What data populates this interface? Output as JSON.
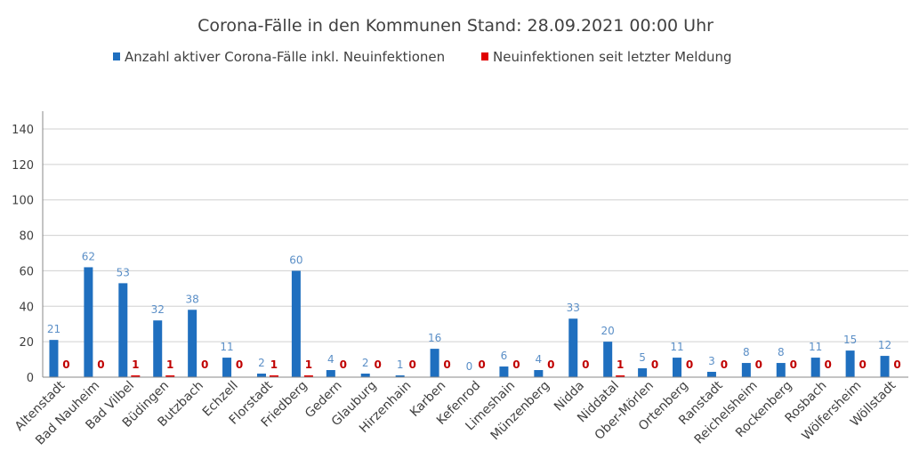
{
  "chart_data": {
    "type": "bar",
    "title": "Corona-Fälle in den Kommunen Stand: 28.09.2021 00:00 Uhr",
    "categories": [
      "Altenstadt",
      "Bad Nauheim",
      "Bad Vilbel",
      "Büdingen",
      "Butzbach",
      "Echzell",
      "Florstadt",
      "Friedberg",
      "Gedern",
      "Glauburg",
      "Hirzenhain",
      "Karben",
      "Kefenrod",
      "Limeshain",
      "Münzenberg",
      "Nidda",
      "Niddatal",
      "Ober-Mörlen",
      "Ortenberg",
      "Ranstadt",
      "Reichelsheim",
      "Rockenberg",
      "Rosbach",
      "Wölfersheim",
      "Wöllstadt"
    ],
    "series": [
      {
        "name": "Anzahl aktiver Corona-Fälle inkl. Neuinfektionen",
        "color": "#1f6fbf",
        "values": [
          21,
          62,
          53,
          32,
          38,
          11,
          2,
          60,
          4,
          2,
          1,
          16,
          0,
          6,
          4,
          33,
          20,
          5,
          11,
          3,
          8,
          8,
          11,
          15,
          12
        ]
      },
      {
        "name": "Neuinfektionen seit letzter Meldung",
        "color": "#e00000",
        "values": [
          0,
          0,
          1,
          1,
          0,
          0,
          1,
          1,
          0,
          0,
          0,
          0,
          0,
          0,
          0,
          0,
          1,
          0,
          0,
          0,
          0,
          0,
          0,
          0,
          0
        ]
      }
    ],
    "ylim": [
      0,
      140
    ],
    "yticks": [
      0,
      20,
      40,
      60,
      80,
      100,
      120,
      140
    ],
    "grid": true,
    "legend_position": "top",
    "xlabel": "",
    "ylabel": ""
  }
}
